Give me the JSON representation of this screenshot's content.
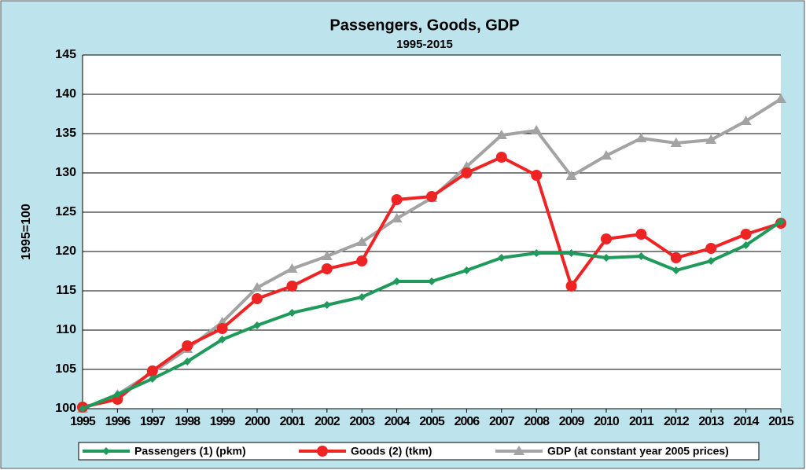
{
  "chart_data": {
    "type": "line",
    "title": "Passengers, Goods, GDP",
    "subtitle": "1995-2015",
    "y_label": "1995=100",
    "categories": [
      "1995",
      "1996",
      "1997",
      "1998",
      "1999",
      "2000",
      "2001",
      "2002",
      "2003",
      "2004",
      "2005",
      "2006",
      "2007",
      "2008",
      "2009",
      "2010",
      "2011",
      "2012",
      "2013",
      "2014",
      "2015"
    ],
    "series": [
      {
        "name": "Passengers (1) (pkm)",
        "color": "#1f9a5a",
        "marker": "diamond",
        "values": [
          100,
          101.8,
          103.8,
          106,
          108.8,
          110.6,
          112.2,
          113.2,
          114.2,
          116.2,
          116.2,
          117.6,
          119.2,
          119.8,
          119.8,
          119.2,
          119.4,
          117.6,
          118.8,
          120.8,
          123.8
        ]
      },
      {
        "name": "Goods (2) (tkm)",
        "color": "#ee2424",
        "marker": "circle",
        "values": [
          100.2,
          101.2,
          104.8,
          108,
          110.2,
          114,
          115.6,
          117.8,
          118.8,
          126.6,
          127,
          130,
          132,
          129.7,
          115.6,
          121.6,
          122.2,
          119.2,
          120.4,
          122.2,
          123.6
        ]
      },
      {
        "name": "GDP (at constant year 2005 prices)",
        "color": "#a3a3a3",
        "marker": "triangle",
        "values": [
          100,
          101.8,
          104.6,
          107.6,
          111,
          115.4,
          117.8,
          119.4,
          121.2,
          124.2,
          126.8,
          130.8,
          134.8,
          135.4,
          129.6,
          132.2,
          134.4,
          133.8,
          134.2,
          136.6,
          139.4
        ]
      }
    ],
    "ylim": [
      100,
      145
    ],
    "yticks": [
      100,
      105,
      110,
      115,
      120,
      125,
      130,
      135,
      140,
      145
    ],
    "grid": true,
    "legend": "bottom"
  }
}
